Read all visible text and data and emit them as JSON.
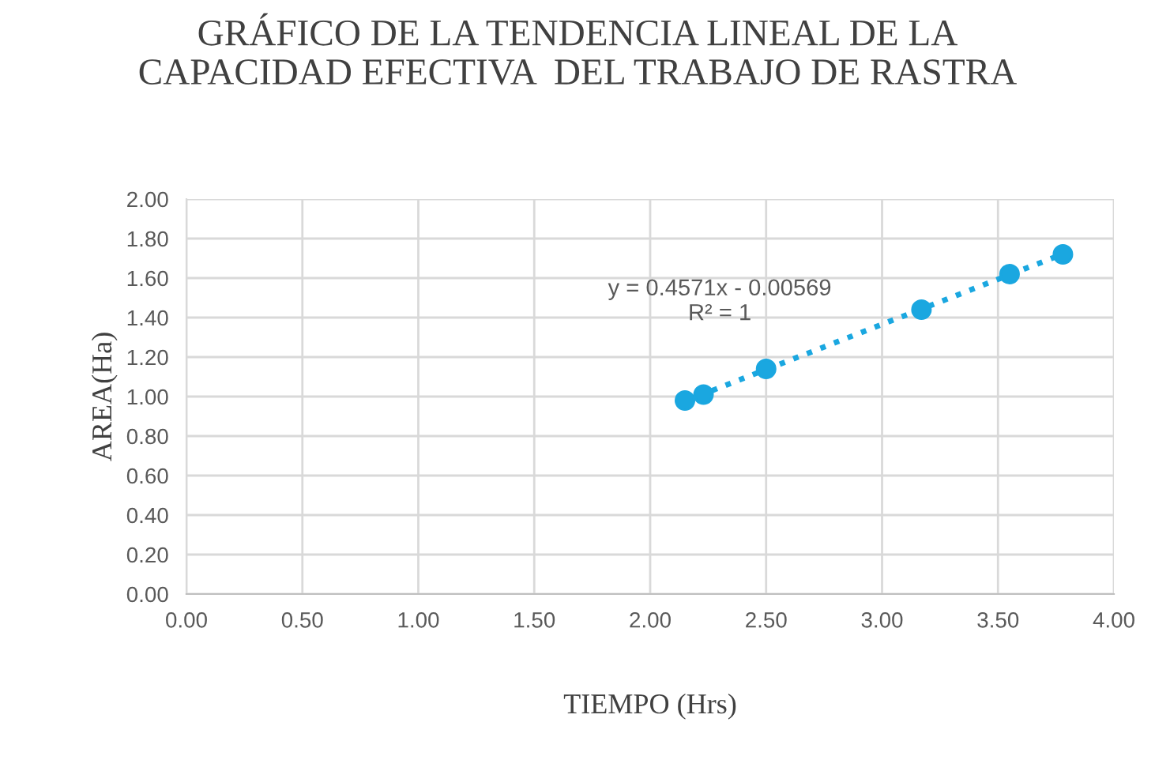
{
  "chart_data": {
    "type": "scatter",
    "title": "GRÁFICO DE LA TENDENCIA LINEAL DE LA\nCAPACIDAD EFECTIVA  DEL TRABAJO DE RASTRA",
    "xlabel": "TIEMPO (Hrs)",
    "ylabel": "AREA(Ha)",
    "series": [
      {
        "color": "#1aa7e0",
        "marker": "circle",
        "x": [
          2.15,
          2.23,
          2.5,
          3.17,
          3.55,
          3.78
        ],
        "values": [
          0.98,
          1.01,
          1.14,
          1.44,
          1.62,
          1.72
        ]
      },
      {
        "type": "line",
        "color": "#1aa7e0",
        "line_style": "dotted",
        "marker": "none",
        "x": [
          2.15,
          3.78
        ],
        "values": [
          0.977,
          1.722
        ]
      }
    ],
    "annotations": [
      "y = 0.4571x - 0.00569\nR² = 1"
    ],
    "xlim": [
      0,
      4
    ],
    "ylim": [
      0,
      2
    ],
    "xticks": [
      {
        "value": 0,
        "label": "0.00"
      },
      {
        "value": 0.5,
        "label": "0.50"
      },
      {
        "value": 1,
        "label": "1.00"
      },
      {
        "value": 1.5,
        "label": "1.50"
      },
      {
        "value": 2,
        "label": "2.00"
      },
      {
        "value": 2.5,
        "label": "2.50"
      },
      {
        "value": 3,
        "label": "3.00"
      },
      {
        "value": 3.5,
        "label": "3.50"
      },
      {
        "value": 4,
        "label": "4.00"
      }
    ],
    "yticks": [
      {
        "value": 0,
        "label": "0.00"
      },
      {
        "value": 0.2,
        "label": "0.20"
      },
      {
        "value": 0.4,
        "label": "0.40"
      },
      {
        "value": 0.6,
        "label": "0.60"
      },
      {
        "value": 0.8,
        "label": "0.80"
      },
      {
        "value": 1,
        "label": "1.00"
      },
      {
        "value": 1.2,
        "label": "1.20"
      },
      {
        "value": 1.4,
        "label": "1.40"
      },
      {
        "value": 1.6,
        "label": "1.60"
      },
      {
        "value": 1.8,
        "label": "1.80"
      },
      {
        "value": 2,
        "label": "2.00"
      }
    ],
    "grid": true,
    "legend": false
  }
}
